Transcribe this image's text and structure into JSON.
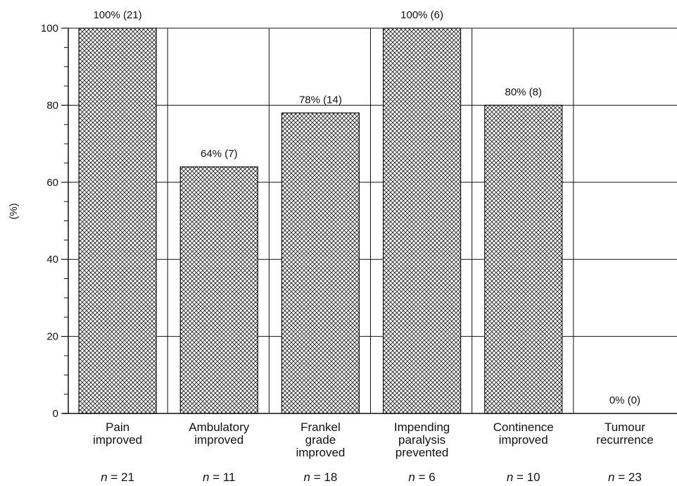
{
  "chart_data": {
    "type": "bar",
    "title": "",
    "xlabel": "",
    "ylabel": "(%)",
    "ylim": [
      0,
      100
    ],
    "yticks": [
      0,
      20,
      40,
      60,
      80,
      100
    ],
    "grid": true,
    "categories": [
      [
        "Pain",
        "improved"
      ],
      [
        "Ambulatory",
        "improved"
      ],
      [
        "Frankel",
        "grade",
        "improved"
      ],
      [
        "Impending",
        "paralysis",
        "prevented"
      ],
      [
        "Continence",
        "improved"
      ],
      [
        "Tumour",
        "recurrence"
      ]
    ],
    "values": [
      100,
      64,
      78,
      100,
      80,
      0
    ],
    "value_labels": [
      "100% (21)",
      "64% (7)",
      "78% (14)",
      "100% (6)",
      "80% (8)",
      "0% (0)"
    ],
    "n_labels": [
      "n = 21",
      "n = 11",
      "n = 18",
      "n = 6",
      "n = 10",
      "n = 23"
    ],
    "colors": {
      "bar_fill": "#ffffff",
      "bar_hatch": "#222222",
      "axis": "#111111",
      "grid": "#111111"
    }
  }
}
